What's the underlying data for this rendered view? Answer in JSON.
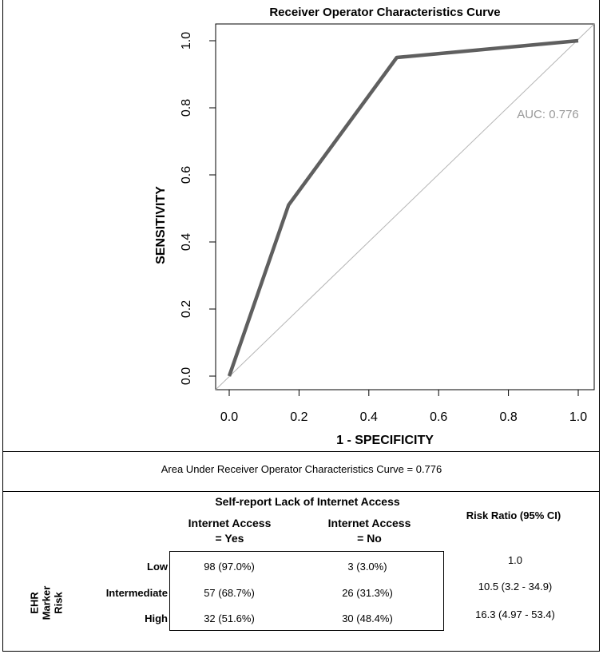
{
  "chart_data": {
    "type": "line",
    "title": "Receiver Operator Characteristics Curve",
    "xlabel": "1 - SPECIFICITY",
    "ylabel": "SENSITIVITY",
    "xlim": [
      0,
      1
    ],
    "ylim": [
      0,
      1
    ],
    "xticks": [
      "0.0",
      "0.2",
      "0.4",
      "0.6",
      "0.8",
      "1.0"
    ],
    "yticks": [
      "0.0",
      "0.2",
      "0.4",
      "0.6",
      "0.8",
      "1.0"
    ],
    "series": [
      {
        "name": "ROC",
        "x": [
          0.0,
          0.17,
          0.48,
          1.0
        ],
        "y": [
          0.0,
          0.51,
          0.95,
          1.0
        ],
        "color": "#5f5f5f"
      },
      {
        "name": "reference",
        "x": [
          0,
          1
        ],
        "y": [
          0,
          1
        ],
        "color": "#b5b5b5"
      }
    ],
    "annotation": "AUC: 0.776",
    "annotation_color": "#999999"
  },
  "table": {
    "auc_text": "Area Under Receiver Operator Characteristics Curve = 0.776",
    "section_title": "Self-report Lack of Internet Access",
    "col_yes_line1": "Internet Access",
    "col_yes_line2": "= Yes",
    "col_no_line1": "Internet Access",
    "col_no_line2": "= No",
    "risk_ratio_header": "Risk Ratio (95% CI)",
    "row_group_label_1": "EHR",
    "row_group_label_2": "Marker",
    "row_group_label_3": "Risk",
    "rows": [
      {
        "label": "Low",
        "yes": "98 (97.0%)",
        "no": "3 (3.0%)",
        "rr": "1.0"
      },
      {
        "label": "Intermediate",
        "yes": "57 (68.7%)",
        "no": "26 (31.3%)",
        "rr": "10.5 (3.2 - 34.9)"
      },
      {
        "label": "High",
        "yes": "32 (51.6%)",
        "no": "30 (48.4%)",
        "rr": "16.3 (4.97 - 53.4)"
      }
    ]
  }
}
